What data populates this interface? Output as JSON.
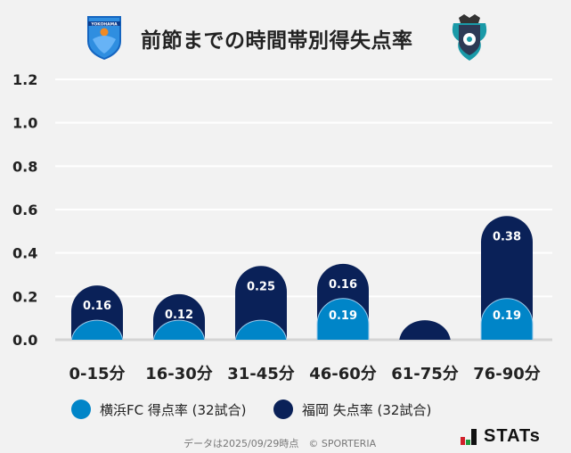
{
  "header": {
    "title": "前節までの時間帯別得失点率",
    "left_logo": "YOKOHAMA FC",
    "right_logo": "Avispa Fukuoka crest"
  },
  "chart_data": {
    "type": "bar",
    "stacked": true,
    "title": "前節までの時間帯別得失点率",
    "categories": [
      "0-15分",
      "16-30分",
      "31-45分",
      "46-60分",
      "61-75分",
      "76-90分"
    ],
    "series": [
      {
        "name": "横浜FC 得点率 (32試合)",
        "color": "#0085c8",
        "values": [
          0.09,
          0.09,
          0.09,
          0.19,
          0,
          0.19
        ],
        "labels": [
          "",
          "",
          "",
          "0.19",
          "",
          "0.19"
        ]
      },
      {
        "name": "福岡 失点率 (32試合)",
        "color": "#0a2158",
        "values": [
          0.16,
          0.12,
          0.25,
          0.16,
          0.09,
          0.38
        ],
        "labels": [
          "0.16",
          "0.12",
          "0.25",
          "0.16",
          "",
          "0.38"
        ]
      }
    ],
    "yticks": [
      "0.0",
      "0.2",
      "0.4",
      "0.6",
      "0.8",
      "1.0",
      "1.2"
    ],
    "ylim": [
      0,
      1.2
    ],
    "grid": true,
    "legend": "bottom"
  },
  "footer": {
    "note": "データは2025/09/29時点　© SPORTERIA",
    "brand": "STATs"
  }
}
